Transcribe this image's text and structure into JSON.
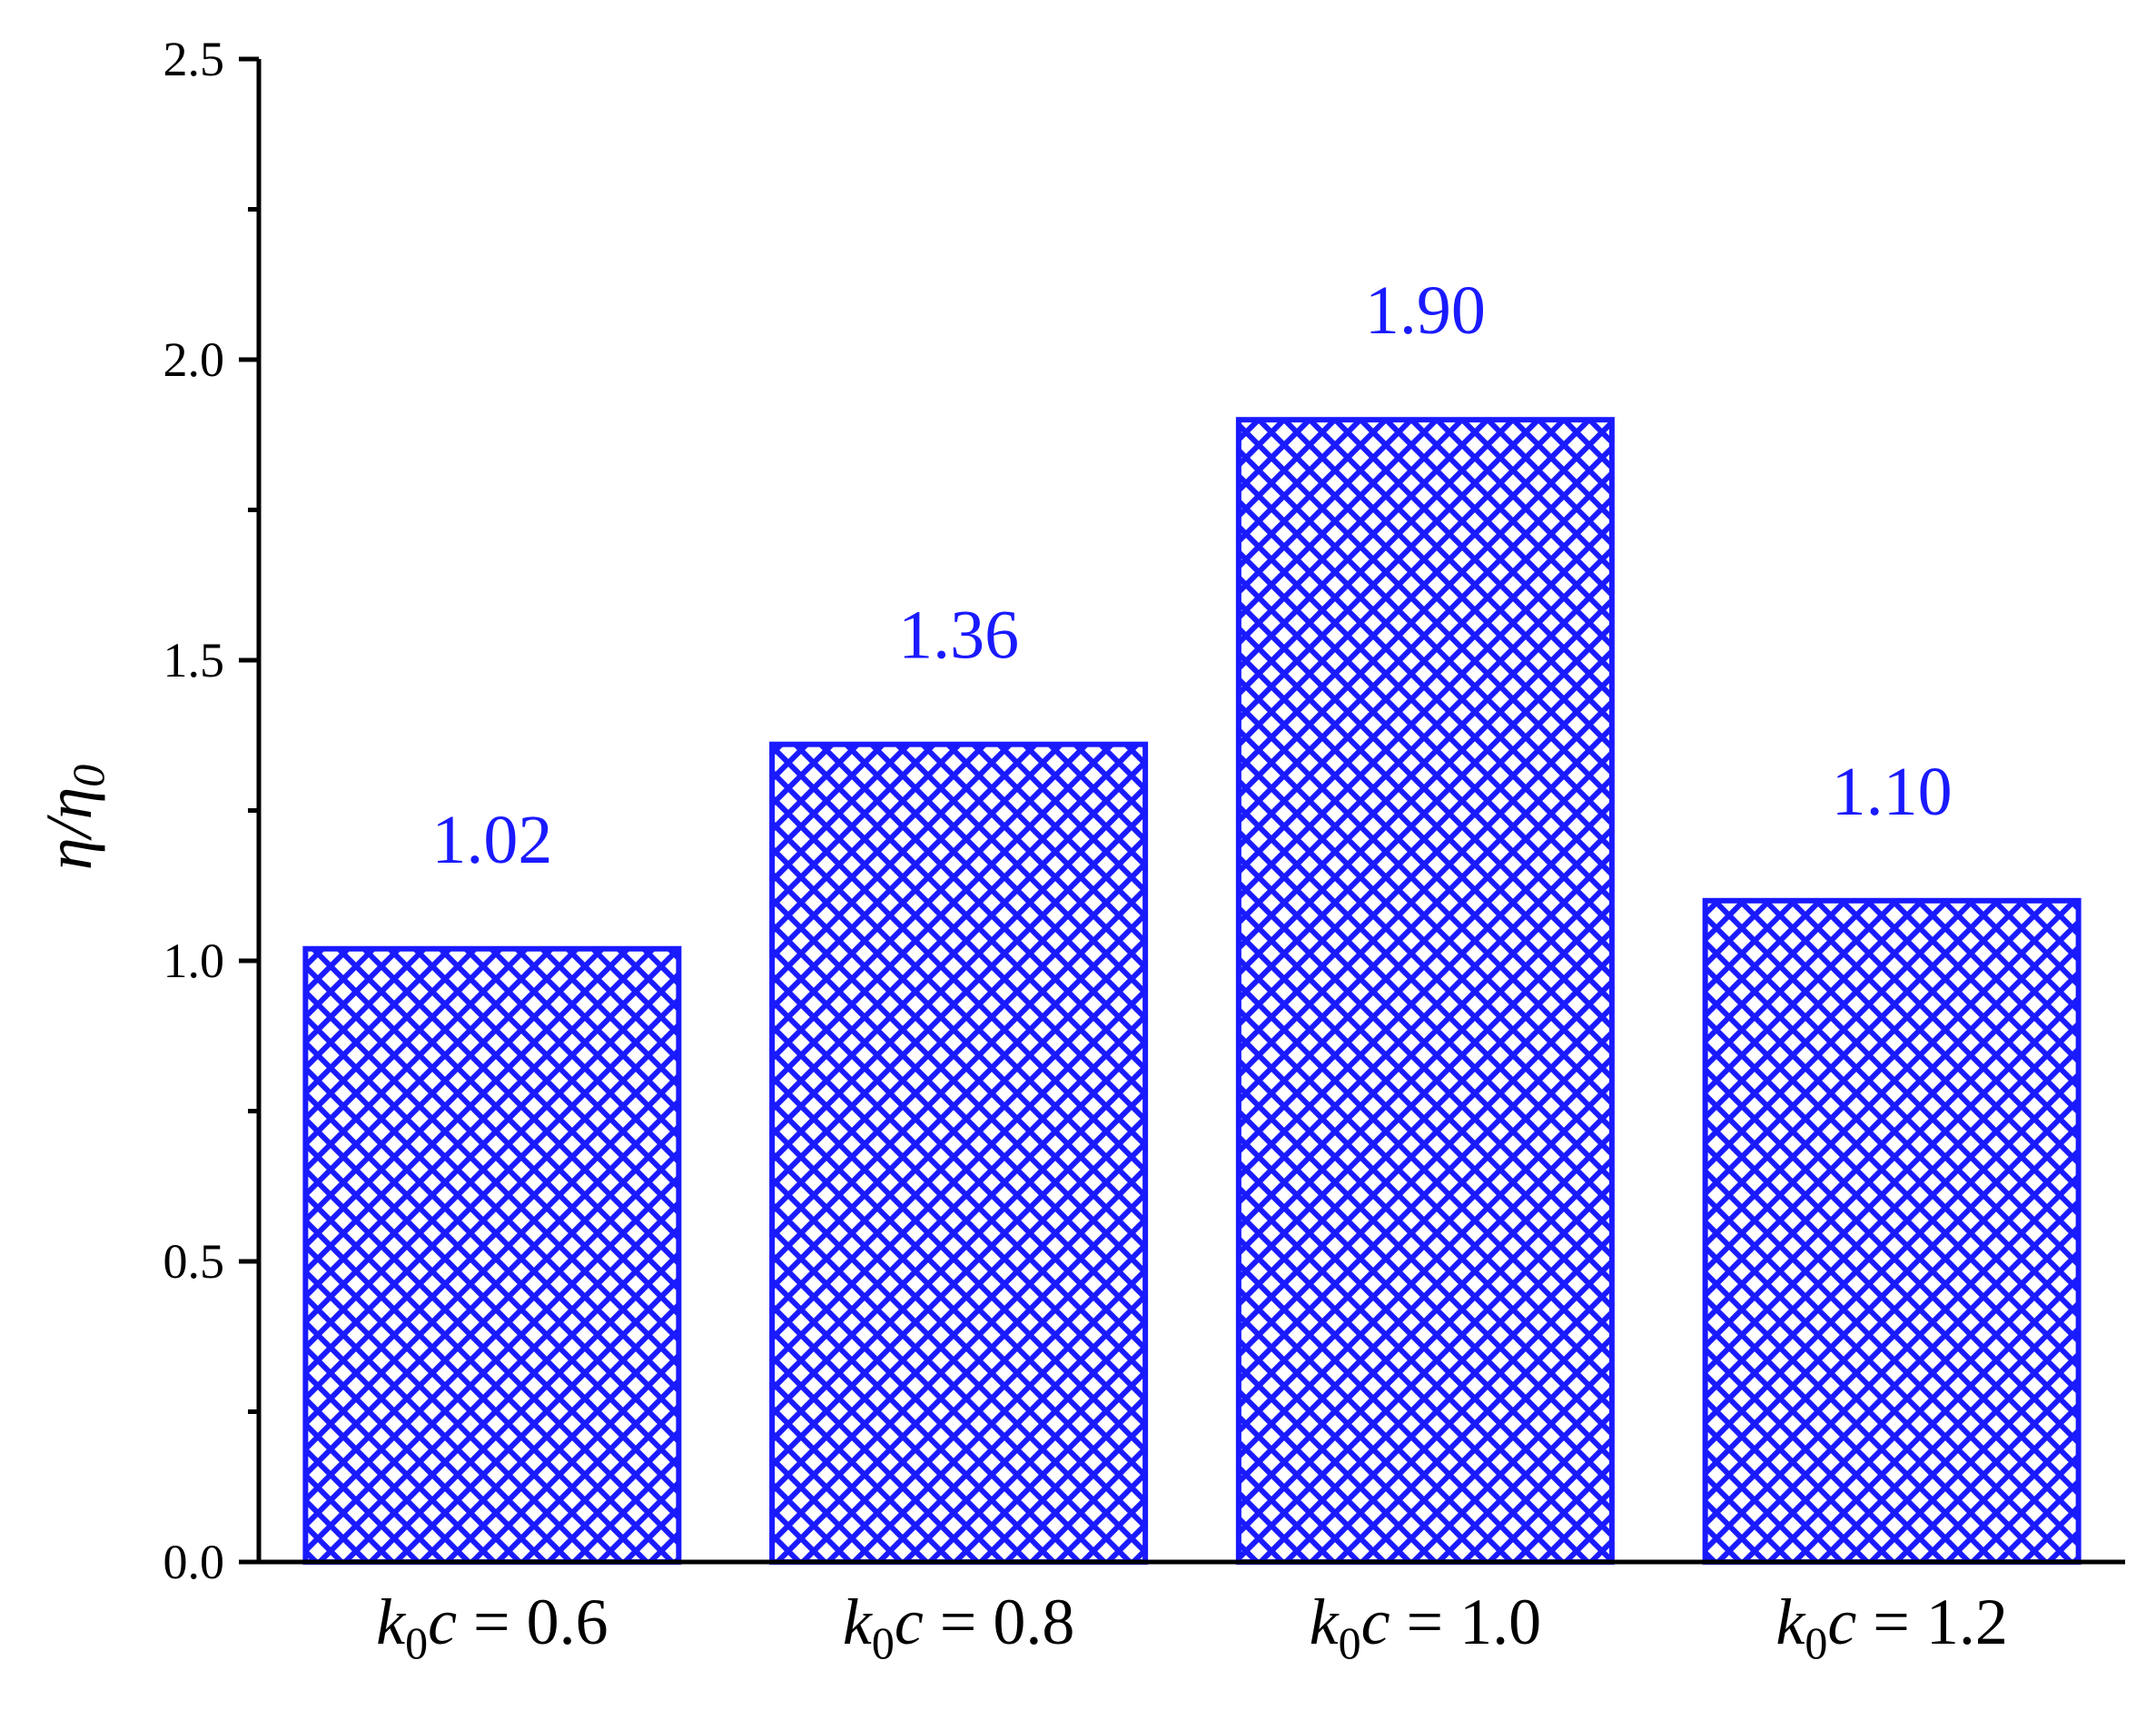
{
  "chart_data": {
    "type": "bar",
    "title": "",
    "xlabel": "",
    "ylabel": "η/η0",
    "ylabel_parts": {
      "main": "η/η",
      "sub": "0"
    },
    "ylim": [
      0,
      2.5
    ],
    "yticks": [
      "0.0",
      "0.5",
      "1.0",
      "1.5",
      "2.0",
      "2.5"
    ],
    "categories": [
      "k0c = 0.6",
      "k0c = 0.8",
      "k0c = 1.0",
      "k0c = 1.2"
    ],
    "category_parts": [
      {
        "var": "k",
        "sub": "0",
        "var2": "c",
        "rest": " = 0.6"
      },
      {
        "var": "k",
        "sub": "0",
        "var2": "c",
        "rest": " = 0.8"
      },
      {
        "var": "k",
        "sub": "0",
        "var2": "c",
        "rest": " = 1.0"
      },
      {
        "var": "k",
        "sub": "0",
        "var2": "c",
        "rest": " = 1.2"
      }
    ],
    "values": [
      1.02,
      1.36,
      1.9,
      1.1
    ],
    "data_labels": [
      "1.02",
      "1.36",
      "1.90",
      "1.10"
    ],
    "bar_fill": "cross-hatch",
    "bar_color": "#1a1aff",
    "grid": false,
    "legend": "none"
  }
}
